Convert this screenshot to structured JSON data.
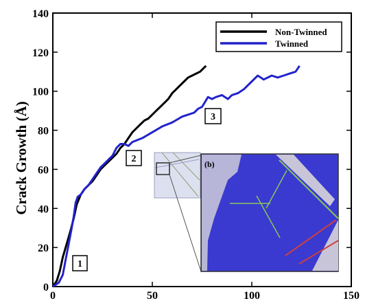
{
  "chart_data": {
    "type": "line",
    "title": "",
    "xlabel": "",
    "ylabel": "Crack Growth (Å)",
    "xlim": [
      0,
      150
    ],
    "ylim": [
      0,
      140
    ],
    "xticks": [
      "0",
      "50",
      "100",
      "150"
    ],
    "yticks": [
      "0",
      "20",
      "40",
      "60",
      "80",
      "100",
      "120",
      "140"
    ],
    "grid": false,
    "legend_position": "top-right",
    "series": [
      {
        "name": "Non-Twinned",
        "color": "#000000",
        "x": [
          0,
          2,
          3.5,
          5,
          7,
          9,
          10.5,
          12,
          14,
          16,
          18,
          20,
          22,
          24,
          26,
          28,
          30,
          32,
          34,
          36,
          38,
          40,
          42,
          44,
          46,
          48,
          50,
          52,
          54,
          56,
          58,
          60,
          62,
          64,
          66,
          68,
          70,
          72,
          74,
          76,
          77
        ],
        "y": [
          0,
          3,
          8,
          15,
          22,
          29,
          35,
          42,
          47,
          50,
          52,
          54,
          57,
          60,
          62,
          64,
          66,
          68,
          71,
          73,
          76,
          79,
          81,
          83,
          85,
          86,
          88,
          90,
          92,
          94,
          96,
          99,
          101,
          103,
          105,
          107,
          108,
          109,
          110,
          112,
          113
        ]
      },
      {
        "name": "Twinned",
        "color": "#2222cc",
        "x": [
          0,
          3,
          5,
          6.5,
          8,
          9.5,
          10.5,
          11.5,
          12.5,
          14,
          16,
          18,
          20,
          22,
          24,
          26,
          28,
          30,
          32,
          34,
          36,
          38,
          40,
          45,
          50,
          55,
          60,
          65,
          68,
          71,
          73,
          75,
          78,
          80,
          82,
          85,
          88,
          90,
          93,
          96,
          100,
          103,
          106,
          110,
          113,
          116,
          119,
          122,
          124
        ],
        "y": [
          0,
          2,
          6,
          14,
          22,
          30,
          36,
          43,
          46,
          47,
          50,
          52,
          55,
          58,
          61,
          63,
          65,
          67,
          71,
          73,
          73,
          72,
          74,
          76,
          79,
          82,
          84,
          87,
          88,
          89,
          91,
          92,
          97,
          96,
          97,
          98,
          96,
          98,
          99,
          101,
          105,
          108,
          106,
          108,
          107,
          108,
          109,
          110,
          113
        ]
      }
    ],
    "annotations": [
      {
        "text": "1",
        "x": 15,
        "y": 11
      },
      {
        "text": "2",
        "x": 43,
        "y": 65
      },
      {
        "text": "3",
        "x": 83,
        "y": 87
      }
    ]
  },
  "inset": {
    "label": "(b)",
    "background": "#3a3ad0",
    "source_box_data": {
      "x": [
        52,
        57
      ],
      "y": [
        56,
        62
      ]
    }
  }
}
